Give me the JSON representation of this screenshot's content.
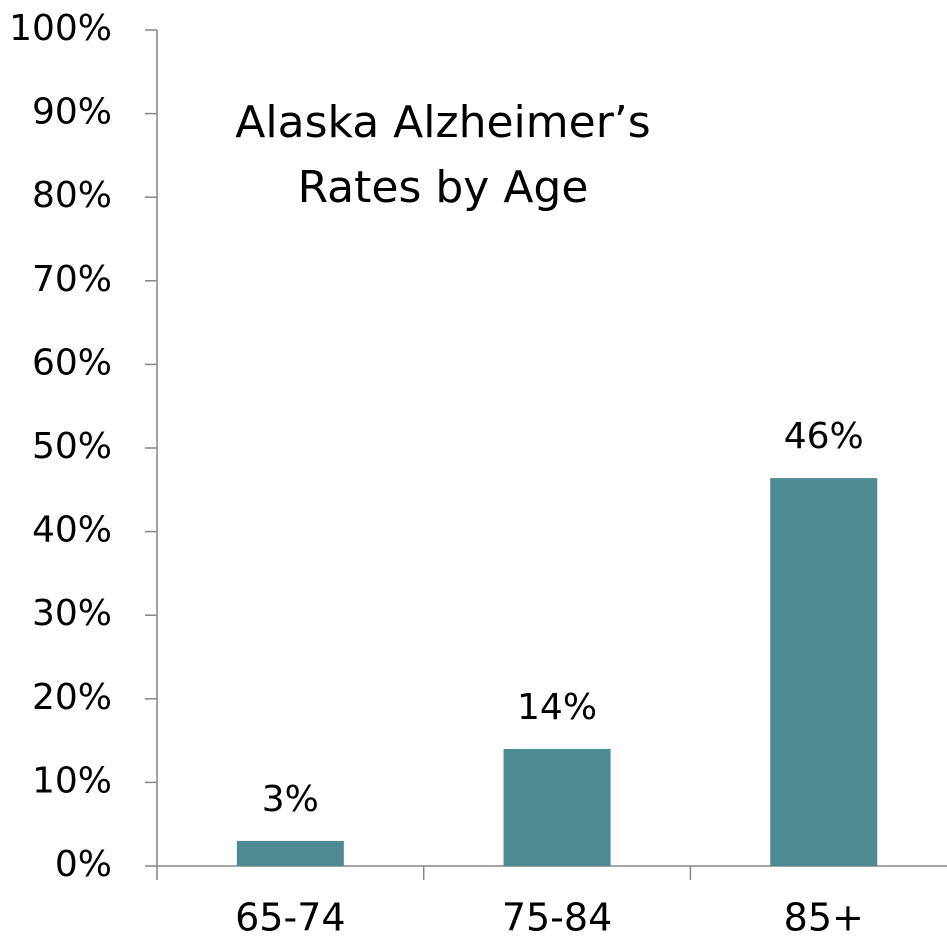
{
  "chart_data": {
    "type": "bar",
    "title": [
      "Alaska  Alzheimer’s",
      "Rates by Age"
    ],
    "categories": [
      "65-74",
      "75-84",
      "85+"
    ],
    "values": [
      3,
      14,
      46.4
    ],
    "value_labels": [
      "3%",
      "14%",
      "46%"
    ],
    "color": "#4e8a91",
    "ylim": [
      0,
      100
    ],
    "yticks": [
      {
        "value": 0,
        "label": "0%"
      },
      {
        "value": 10,
        "label": "10%"
      },
      {
        "value": 20,
        "label": "20%"
      },
      {
        "value": 30,
        "label": "30%"
      },
      {
        "value": 40,
        "label": "40%"
      },
      {
        "value": 50,
        "label": "50%"
      },
      {
        "value": 60,
        "label": "60%"
      },
      {
        "value": 70,
        "label": "70%"
      },
      {
        "value": 80,
        "label": "80%"
      },
      {
        "value": 90,
        "label": "90%"
      },
      {
        "value": 100,
        "label": "100%"
      }
    ]
  }
}
